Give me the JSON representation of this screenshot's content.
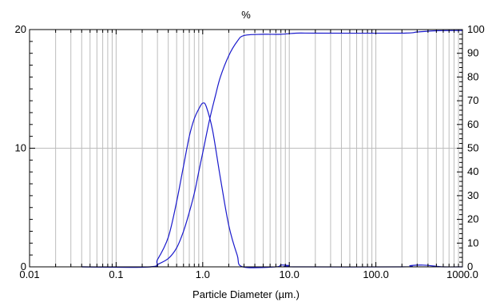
{
  "chart_data": {
    "type": "line",
    "title": "%",
    "xlabel": "Particle Diameter (µm.)",
    "ylabel": "",
    "x_scale": "log",
    "xlim": [
      0.01,
      1000.0
    ],
    "ylim_left": [
      0,
      20
    ],
    "ylim_right": [
      0,
      100
    ],
    "grid": true,
    "x_ticks": [
      {
        "value": 0.01,
        "label": "0.01"
      },
      {
        "value": 0.1,
        "label": "0.1"
      },
      {
        "value": 1.0,
        "label": "1.0"
      },
      {
        "value": 10.0,
        "label": "10.0"
      },
      {
        "value": 100.0,
        "label": "100.0"
      },
      {
        "value": 1000.0,
        "label": "1000.0"
      }
    ],
    "y_left_ticks": [
      {
        "value": 0,
        "label": "0"
      },
      {
        "value": 10,
        "label": "10"
      },
      {
        "value": 20,
        "label": "20"
      }
    ],
    "y_right_ticks": [
      {
        "value": 0,
        "label": "0"
      },
      {
        "value": 10,
        "label": "10"
      },
      {
        "value": 20,
        "label": "20"
      },
      {
        "value": 30,
        "label": "30"
      },
      {
        "value": 40,
        "label": "40"
      },
      {
        "value": 50,
        "label": "50"
      },
      {
        "value": 60,
        "label": "60"
      },
      {
        "value": 70,
        "label": "70"
      },
      {
        "value": 80,
        "label": "80"
      },
      {
        "value": 90,
        "label": "90"
      },
      {
        "value": 100,
        "label": "100"
      }
    ],
    "series_color": "#1a1acc",
    "series": [
      {
        "axis": "left",
        "points": [
          [
            0.04,
            0
          ],
          [
            0.25,
            0
          ],
          [
            0.3,
            0.6
          ],
          [
            0.4,
            2.5
          ],
          [
            0.5,
            5.5
          ],
          [
            0.6,
            8.5
          ],
          [
            0.7,
            11
          ],
          [
            0.8,
            12.5
          ],
          [
            0.9,
            13.3
          ],
          [
            1.0,
            13.8
          ],
          [
            1.1,
            13.5
          ],
          [
            1.3,
            11.5
          ],
          [
            1.6,
            7.5
          ],
          [
            2.0,
            3.5
          ],
          [
            2.5,
            1.0
          ],
          [
            2.9,
            0
          ],
          [
            7.0,
            0
          ],
          [
            8.0,
            0.15
          ],
          [
            10.0,
            0.1
          ],
          [
            11.0,
            0
          ],
          [
            200.0,
            0
          ],
          [
            250.0,
            0.1
          ],
          [
            350.0,
            0.15
          ],
          [
            500.0,
            0.05
          ],
          [
            600.0,
            0
          ],
          [
            1000.0,
            0
          ]
        ]
      },
      {
        "axis": "right",
        "points": [
          [
            0.04,
            0
          ],
          [
            0.25,
            0
          ],
          [
            0.3,
            1
          ],
          [
            0.4,
            3.5
          ],
          [
            0.5,
            8
          ],
          [
            0.6,
            15
          ],
          [
            0.7,
            23
          ],
          [
            0.8,
            31
          ],
          [
            0.9,
            40
          ],
          [
            1.0,
            48
          ],
          [
            1.2,
            62
          ],
          [
            1.4,
            72
          ],
          [
            1.6,
            80
          ],
          [
            2.0,
            89
          ],
          [
            2.5,
            95
          ],
          [
            3.0,
            97.5
          ],
          [
            5.0,
            98
          ],
          [
            8.0,
            98
          ],
          [
            12.0,
            98.5
          ],
          [
            20.0,
            98.5
          ],
          [
            200.0,
            98.5
          ],
          [
            300.0,
            99
          ],
          [
            500.0,
            99.5
          ],
          [
            1000.0,
            99.6
          ]
        ]
      }
    ]
  }
}
